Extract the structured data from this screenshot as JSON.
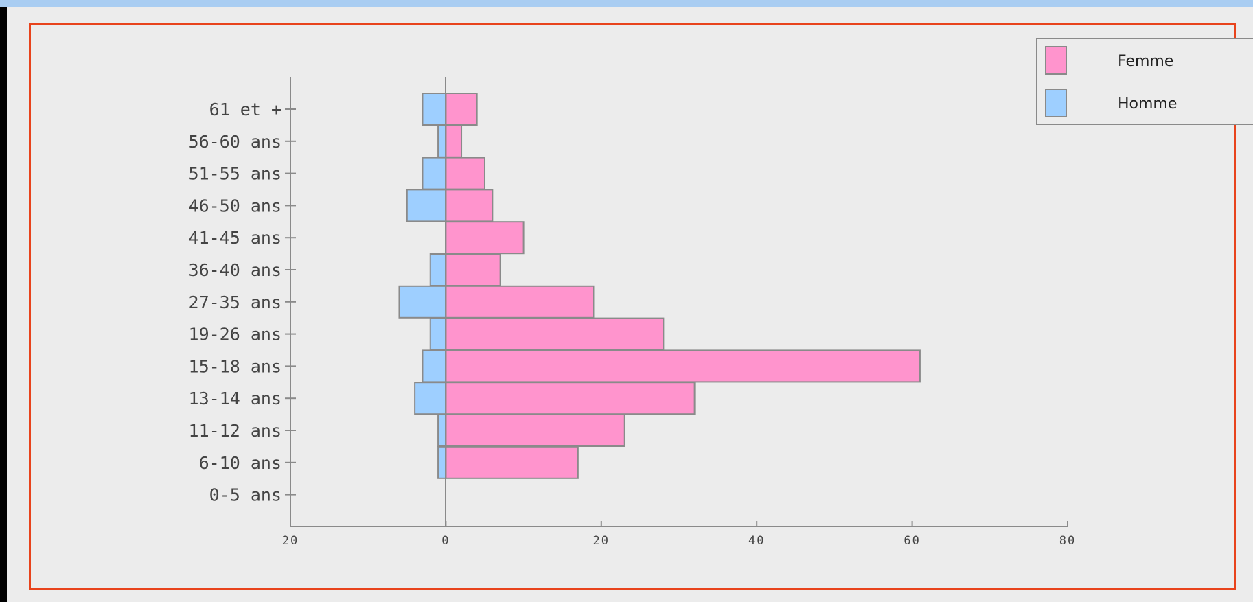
{
  "colors": {
    "femme": "#ff94cd",
    "homme": "#9ecfff",
    "outline": "#8a8a8a",
    "frame": "#e8431c"
  },
  "chart_data": {
    "type": "bar",
    "orientation": "horizontal",
    "categories": [
      "61 et +",
      "56-60 ans",
      "51-55 ans",
      "46-50 ans",
      "41-45 ans",
      "36-40 ans",
      "27-35 ans",
      "19-26 ans",
      "15-18 ans",
      "13-14 ans",
      "11-12 ans",
      "6-10 ans",
      "0-5 ans"
    ],
    "series": [
      {
        "name": "Femme",
        "values": [
          4,
          2,
          5,
          6,
          10,
          7,
          19,
          28,
          61,
          32,
          23,
          17,
          0
        ]
      },
      {
        "name": "Homme",
        "values": [
          -3,
          -1,
          -3,
          -5,
          0,
          -2,
          -6,
          -2,
          -3,
          -4,
          -1,
          -1,
          0
        ]
      }
    ],
    "xlim": [
      -20,
      80
    ],
    "xticks": [
      {
        "value": -20,
        "label": "20"
      },
      {
        "value": 0,
        "label": "0"
      },
      {
        "value": 20,
        "label": "20"
      },
      {
        "value": 40,
        "label": "40"
      },
      {
        "value": 60,
        "label": "60"
      },
      {
        "value": 80,
        "label": "80"
      }
    ],
    "legend": {
      "position": "top-right",
      "entries": [
        "Femme",
        "Homme"
      ]
    },
    "grid": false
  }
}
